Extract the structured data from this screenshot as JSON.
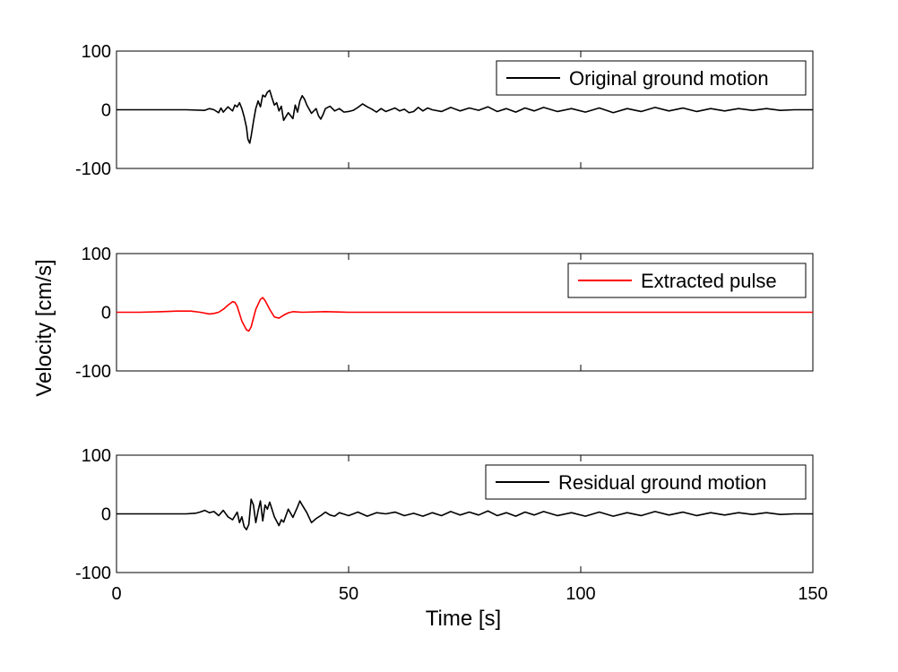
{
  "figure": {
    "ylabel": "Velocity [cm/s]",
    "xlabel": "Time [s]"
  },
  "chart_data": [
    {
      "type": "line",
      "xlim": [
        0,
        150
      ],
      "ylim": [
        -100,
        100
      ],
      "xticks": [
        0,
        50,
        100,
        150
      ],
      "yticks": [
        100,
        0,
        -100
      ],
      "grid": false,
      "legend_position": "top-right",
      "series": [
        {
          "name": "Original ground motion",
          "color": "#000000",
          "x": [
            0,
            15,
            19,
            20,
            21,
            22,
            22.5,
            23,
            24,
            25,
            25.5,
            26,
            26.5,
            27,
            27.5,
            28,
            28.3,
            28.7,
            29,
            29.5,
            30,
            30.5,
            31,
            31.5,
            32,
            32.5,
            33,
            33.5,
            34,
            34.5,
            35,
            35.5,
            36,
            37,
            38,
            38.5,
            39,
            39.5,
            40,
            40.5,
            41,
            42,
            43,
            43.5,
            44,
            44.5,
            45,
            46,
            47,
            48,
            49,
            50,
            51,
            52,
            53,
            54,
            55,
            56,
            57,
            58,
            59,
            60,
            61,
            62,
            63,
            64,
            65,
            66,
            67,
            68,
            70,
            72,
            74,
            76,
            78,
            80,
            82,
            84,
            86,
            88,
            90,
            92,
            95,
            98,
            101,
            104,
            107,
            110,
            113,
            116,
            119,
            122,
            125,
            128,
            131,
            134,
            137,
            140,
            143,
            146,
            150
          ],
          "y": [
            0,
            0,
            -1,
            2,
            0,
            -5,
            3,
            -4,
            5,
            -2,
            8,
            5,
            12,
            2,
            -12,
            -30,
            -50,
            -57,
            -45,
            -20,
            2,
            15,
            5,
            25,
            22,
            30,
            33,
            20,
            8,
            12,
            -2,
            6,
            -18,
            -5,
            -15,
            8,
            -4,
            15,
            24,
            18,
            8,
            -6,
            2,
            -10,
            -16,
            -8,
            2,
            6,
            -2,
            2,
            -4,
            -3,
            -1,
            4,
            10,
            5,
            1,
            -4,
            2,
            -3,
            0,
            3,
            -2,
            1,
            -5,
            -3,
            4,
            -2,
            3,
            0,
            -3,
            4,
            -2,
            3,
            -1,
            5,
            -3,
            2,
            -4,
            3,
            -2,
            4,
            -3,
            2,
            -4,
            3,
            -5,
            2,
            -3,
            4,
            -2,
            3,
            -3,
            2,
            -2,
            2,
            -1,
            2,
            -1,
            0,
            0
          ]
        }
      ]
    },
    {
      "type": "line",
      "xlim": [
        0,
        150
      ],
      "ylim": [
        -100,
        100
      ],
      "xticks": [
        0,
        50,
        100,
        150
      ],
      "yticks": [
        100,
        0,
        -100
      ],
      "grid": false,
      "legend_position": "top-right",
      "series": [
        {
          "name": "Extracted pulse",
          "color": "#ff0000",
          "x": [
            0,
            5,
            10,
            13,
            16,
            18,
            20,
            21,
            22,
            23,
            24,
            25,
            25.5,
            26,
            27,
            28,
            28.5,
            29,
            30,
            31,
            31.5,
            32,
            33,
            34,
            35,
            36,
            37,
            38,
            40,
            45,
            50,
            150
          ],
          "y": [
            0,
            0,
            1,
            2,
            2,
            0,
            -3,
            -2,
            0,
            5,
            12,
            18,
            17,
            10,
            -15,
            -30,
            -32,
            -25,
            5,
            22,
            25,
            20,
            5,
            -8,
            -10,
            -5,
            -1,
            1,
            0,
            1,
            0,
            0
          ]
        }
      ]
    },
    {
      "type": "line",
      "xlim": [
        0,
        150
      ],
      "ylim": [
        -100,
        100
      ],
      "xticks": [
        0,
        50,
        100,
        150
      ],
      "yticks": [
        100,
        0,
        -100
      ],
      "grid": false,
      "legend_position": "top-right",
      "series": [
        {
          "name": "Residual ground motion",
          "color": "#000000",
          "x": [
            0,
            10,
            15,
            17,
            18,
            19,
            20,
            21,
            22,
            23,
            24,
            25,
            26,
            26.5,
            27,
            27.5,
            28,
            28.5,
            29,
            29.5,
            30,
            30.5,
            31,
            31.5,
            32,
            32.5,
            33,
            34,
            35,
            35.5,
            36,
            37,
            38,
            39,
            39.5,
            40,
            41,
            42,
            43,
            44,
            45,
            46,
            47,
            48,
            50,
            52,
            54,
            56,
            58,
            60,
            62,
            64,
            66,
            68,
            70,
            72,
            74,
            76,
            78,
            80,
            82,
            84,
            86,
            88,
            90,
            92,
            95,
            98,
            101,
            104,
            107,
            110,
            113,
            116,
            119,
            122,
            125,
            128,
            131,
            134,
            137,
            140,
            143,
            146,
            150
          ],
          "y": [
            0,
            0,
            0,
            1,
            3,
            6,
            2,
            4,
            -3,
            6,
            -5,
            -10,
            3,
            -15,
            -5,
            -22,
            -27,
            -18,
            25,
            15,
            -15,
            5,
            22,
            -12,
            15,
            8,
            20,
            -5,
            -20,
            -10,
            -14,
            8,
            -6,
            12,
            22,
            15,
            2,
            -15,
            -8,
            -3,
            3,
            -2,
            -4,
            2,
            -3,
            3,
            -4,
            2,
            0,
            3,
            -3,
            1,
            -4,
            2,
            -3,
            4,
            -2,
            3,
            -2,
            5,
            -3,
            2,
            -4,
            3,
            -2,
            4,
            -3,
            2,
            -4,
            3,
            -4,
            2,
            -3,
            4,
            -2,
            3,
            -3,
            2,
            -2,
            2,
            -1,
            2,
            -1,
            0,
            0
          ]
        }
      ]
    }
  ]
}
